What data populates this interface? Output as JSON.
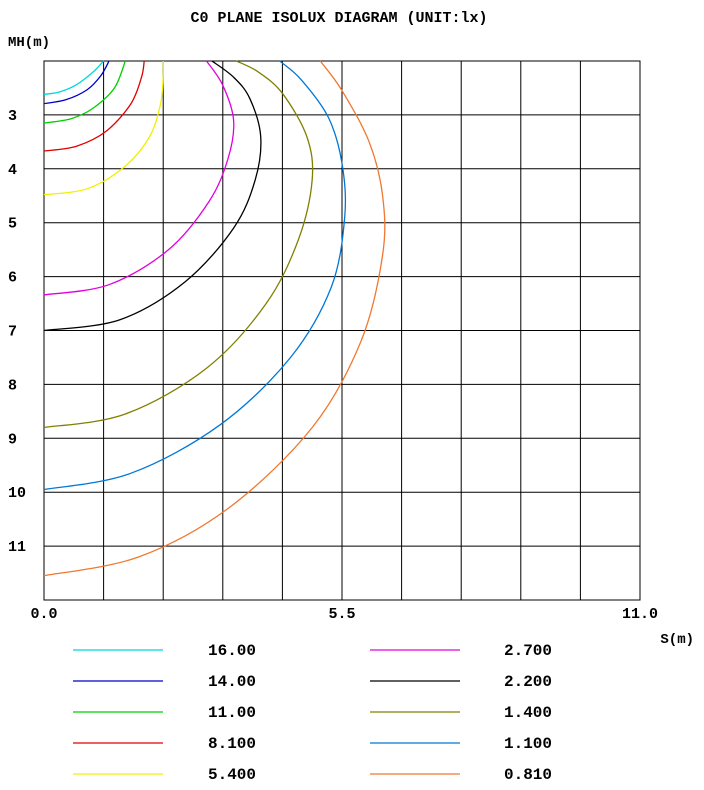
{
  "chart_data": {
    "type": "line",
    "title": "C0 PLANE ISOLUX DIAGRAM (UNIT:lx)",
    "xlabel": "S(m)",
    "ylabel": "MH(m)",
    "xlim": [
      0,
      11
    ],
    "ylim": [
      2,
      12
    ],
    "grid": true,
    "x_ticks": [
      {
        "value": 0,
        "label": "0.0"
      },
      {
        "value": 5.5,
        "label": "5.5"
      },
      {
        "value": 11,
        "label": "11.0"
      }
    ],
    "y_ticks": [
      {
        "value": 3,
        "label": "3"
      },
      {
        "value": 4,
        "label": "4"
      },
      {
        "value": 5,
        "label": "5"
      },
      {
        "value": 6,
        "label": "6"
      },
      {
        "value": 7,
        "label": "7"
      },
      {
        "value": 8,
        "label": "8"
      },
      {
        "value": 9,
        "label": "9"
      },
      {
        "value": 10,
        "label": "10"
      },
      {
        "value": 11,
        "label": "11"
      }
    ],
    "legend_placement": "bottom",
    "series": [
      {
        "name": "16.00",
        "color": "#00d8d8",
        "x": [
          0,
          0.3,
          0.6,
          0.9,
          1.1
        ],
        "y": [
          2.62,
          2.57,
          2.44,
          2.21,
          2.0
        ]
      },
      {
        "name": "14.00",
        "color": "#0000c8",
        "x": [
          0,
          0.4,
          0.8,
          1.05,
          1.2
        ],
        "y": [
          2.79,
          2.72,
          2.53,
          2.27,
          2.0
        ]
      },
      {
        "name": "11.00",
        "color": "#00d000",
        "x": [
          0,
          0.5,
          0.9,
          1.3,
          1.5
        ],
        "y": [
          3.15,
          3.07,
          2.88,
          2.5,
          2.0
        ]
      },
      {
        "name": "8.100",
        "color": "#e00000",
        "x": [
          0,
          0.6,
          1.15,
          1.6,
          1.8,
          1.85
        ],
        "y": [
          3.67,
          3.58,
          3.3,
          2.8,
          2.3,
          2.0
        ]
      },
      {
        "name": "5.400",
        "color": "#f0f000",
        "x": [
          0,
          0.8,
          1.5,
          1.95,
          2.15,
          2.2,
          2.2
        ],
        "y": [
          4.48,
          4.37,
          3.95,
          3.4,
          2.8,
          2.3,
          2.0
        ]
      },
      {
        "name": "2.700",
        "color": "#e000e0",
        "x": [
          0,
          1.2,
          2.3,
          3.05,
          3.4,
          3.5,
          3.3,
          3.0
        ],
        "y": [
          6.34,
          6.15,
          5.5,
          4.6,
          3.8,
          3.1,
          2.45,
          2.0
        ]
      },
      {
        "name": "2.200",
        "color": "#000000",
        "x": [
          0,
          1.4,
          2.6,
          3.5,
          3.9,
          4.0,
          3.8,
          3.5,
          3.1
        ],
        "y": [
          7.0,
          6.8,
          6.1,
          5.1,
          4.2,
          3.4,
          2.7,
          2.3,
          2.0
        ]
      },
      {
        "name": "1.400",
        "color": "#808000",
        "x": [
          0,
          1.5,
          3.0,
          4.1,
          4.7,
          4.95,
          4.85,
          4.4,
          3.95,
          3.55
        ],
        "y": [
          8.8,
          8.55,
          7.7,
          6.5,
          5.3,
          4.2,
          3.4,
          2.6,
          2.2,
          2.0
        ]
      },
      {
        "name": "1.100",
        "color": "#0078d8",
        "x": [
          0,
          1.6,
          3.25,
          4.55,
          5.3,
          5.55,
          5.5,
          5.25,
          4.75,
          4.35
        ],
        "y": [
          9.95,
          9.65,
          8.75,
          7.5,
          6.2,
          4.9,
          3.9,
          3.05,
          2.35,
          2.0
        ]
      },
      {
        "name": "0.810",
        "color": "#f07830",
        "x": [
          0,
          1.75,
          3.4,
          4.95,
          5.85,
          6.25,
          6.25,
          6.0,
          5.5,
          5.1
        ],
        "y": [
          11.55,
          11.2,
          10.3,
          8.8,
          7.2,
          5.6,
          4.5,
          3.5,
          2.55,
          2.0
        ]
      }
    ]
  }
}
